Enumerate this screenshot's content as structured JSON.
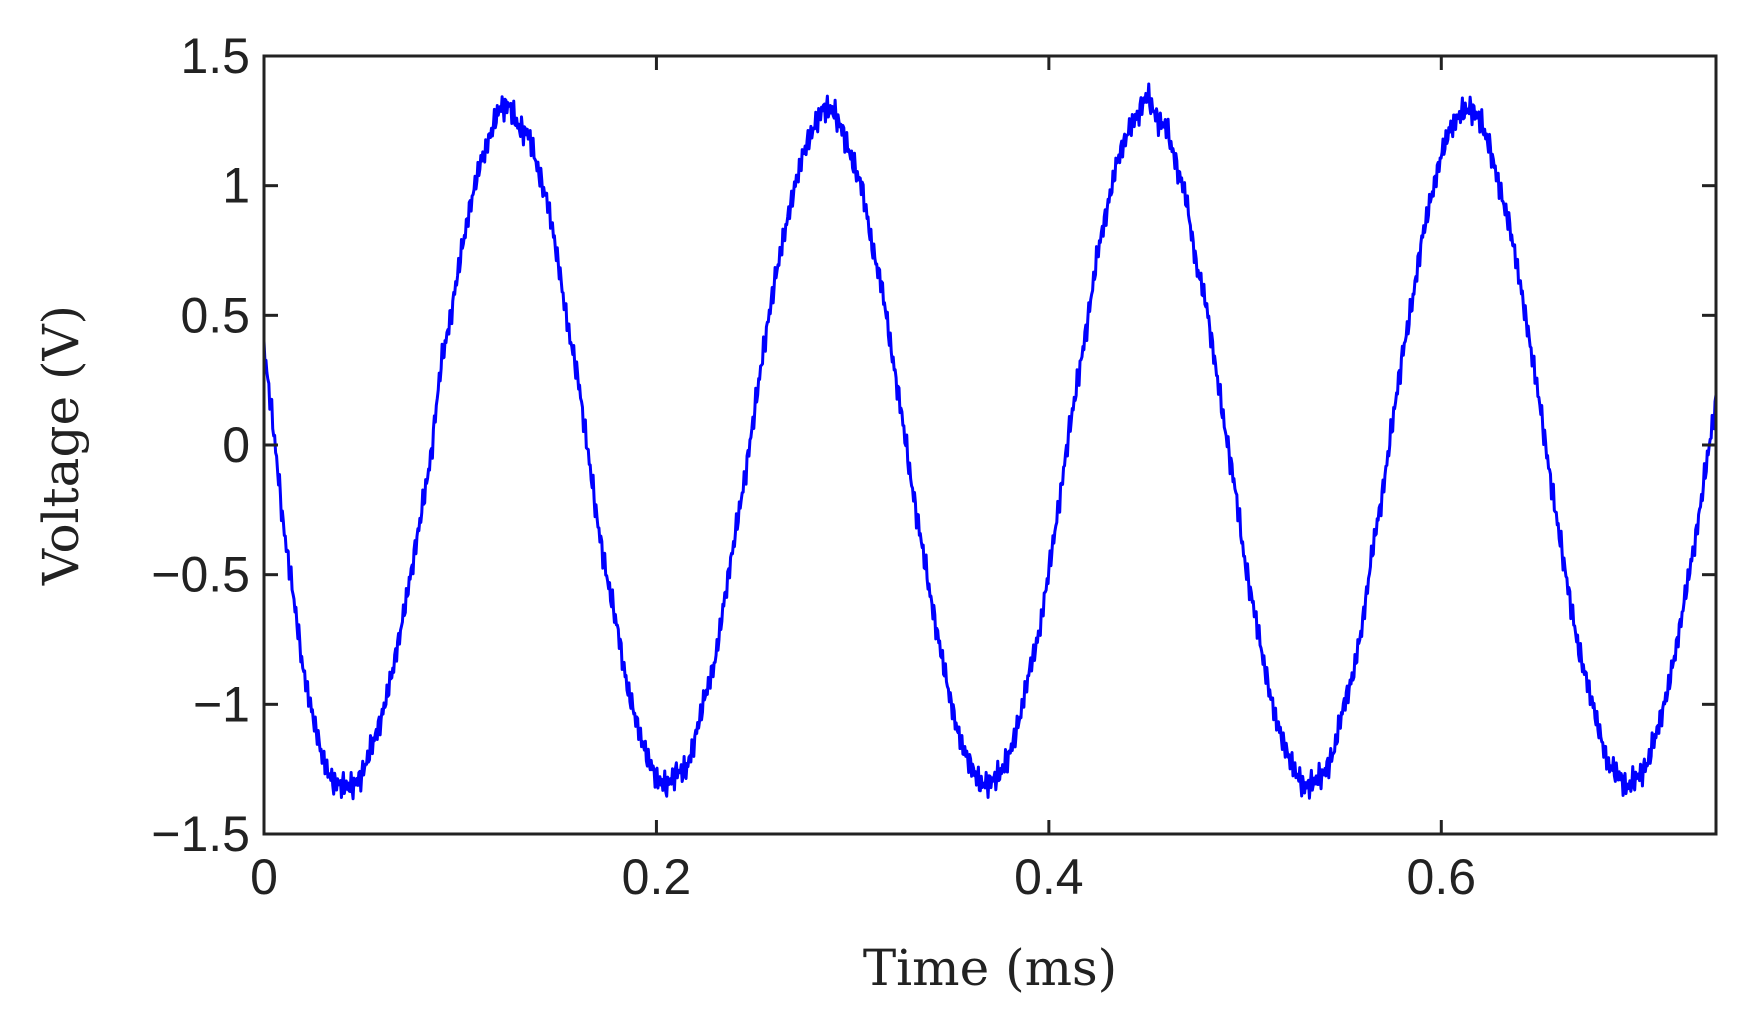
{
  "chart_data": {
    "type": "line",
    "title": "",
    "xlabel": "Time (ms)",
    "ylabel": "Voltage (V)",
    "xlim": [
      0,
      0.74
    ],
    "ylim": [
      -1.5,
      1.5
    ],
    "grid": false,
    "xticks": [
      0,
      0.2,
      0.4,
      0.6
    ],
    "xtick_labels": [
      "0",
      "0.2",
      "0.4",
      "0.6"
    ],
    "yticks": [
      1.5,
      1,
      0.5,
      0,
      -0.5,
      -1,
      -1.5
    ],
    "ytick_labels": [
      "1.5",
      "1",
      "0.5",
      "0",
      "−0.5",
      "−1",
      "−1.5"
    ],
    "series": [
      {
        "color": "#0000ff",
        "x": [
          0,
          0.005,
          0.01,
          0.015,
          0.02,
          0.025,
          0.03,
          0.035,
          0.04,
          0.045,
          0.05,
          0.055,
          0.06,
          0.065,
          0.07,
          0.075,
          0.08,
          0.085,
          0.09,
          0.095,
          0.1,
          0.105,
          0.11,
          0.115,
          0.12,
          0.125,
          0.13,
          0.135,
          0.14,
          0.145,
          0.15,
          0.155,
          0.16,
          0.165,
          0.17,
          0.175,
          0.18,
          0.185,
          0.19,
          0.195,
          0.2,
          0.205,
          0.21,
          0.215,
          0.22,
          0.225,
          0.23,
          0.235,
          0.24,
          0.245,
          0.25,
          0.255,
          0.26,
          0.265,
          0.27,
          0.275,
          0.28,
          0.285,
          0.29,
          0.295,
          0.3,
          0.305,
          0.31,
          0.315,
          0.32,
          0.325,
          0.33,
          0.335,
          0.34,
          0.345,
          0.35,
          0.355,
          0.36,
          0.365,
          0.37,
          0.375,
          0.38,
          0.385,
          0.39,
          0.395,
          0.4,
          0.405,
          0.41,
          0.415,
          0.42,
          0.425,
          0.43,
          0.435,
          0.44,
          0.445,
          0.45,
          0.455,
          0.46,
          0.465,
          0.47,
          0.475,
          0.48,
          0.485,
          0.49,
          0.495,
          0.5,
          0.505,
          0.51,
          0.515,
          0.52,
          0.525,
          0.53,
          0.535,
          0.54,
          0.545,
          0.55,
          0.555,
          0.56,
          0.565,
          0.57,
          0.575,
          0.58,
          0.585,
          0.59,
          0.595,
          0.6,
          0.605,
          0.61,
          0.615,
          0.62,
          0.625,
          0.63,
          0.635,
          0.64,
          0.645,
          0.65,
          0.655,
          0.66,
          0.665,
          0.67,
          0.675,
          0.68,
          0.685,
          0.69,
          0.695,
          0.7,
          0.705,
          0.71,
          0.715,
          0.72,
          0.725,
          0.73,
          0.735,
          0.74
        ],
        "y": [
          0.38,
          0.05,
          -0.32,
          -0.58,
          -0.87,
          -1.05,
          -1.21,
          -1.3,
          -1.31,
          -1.32,
          -1.27,
          -1.16,
          -1.05,
          -0.89,
          -0.7,
          -0.49,
          -0.27,
          -0.05,
          0.3,
          0.49,
          0.72,
          0.92,
          1.08,
          1.19,
          1.3,
          1.31,
          1.22,
          1.2,
          1.05,
          0.92,
          0.7,
          0.45,
          0.26,
          -0.02,
          -0.3,
          -0.52,
          -0.7,
          -0.93,
          -1.07,
          -1.2,
          -1.28,
          -1.32,
          -1.26,
          -1.26,
          -1.12,
          -0.96,
          -0.83,
          -0.58,
          -0.35,
          -0.13,
          0.13,
          0.39,
          0.62,
          0.81,
          0.98,
          1.13,
          1.22,
          1.3,
          1.29,
          1.21,
          1.09,
          0.99,
          0.76,
          0.61,
          0.35,
          0.12,
          -0.15,
          -0.37,
          -0.6,
          -0.8,
          -0.99,
          -1.15,
          -1.23,
          -1.31,
          -1.3,
          -1.27,
          -1.19,
          -1.06,
          -0.87,
          -0.73,
          -0.48,
          -0.24,
          0.04,
          0.26,
          0.49,
          0.75,
          0.92,
          1.1,
          1.2,
          1.27,
          1.35,
          1.26,
          1.22,
          1.08,
          0.95,
          0.7,
          0.55,
          0.3,
          0.05,
          -0.17,
          -0.46,
          -0.65,
          -0.86,
          -1.04,
          -1.16,
          -1.25,
          -1.32,
          -1.3,
          -1.27,
          -1.19,
          -1.01,
          -0.89,
          -0.68,
          -0.4,
          -0.19,
          0.08,
          0.34,
          0.54,
          0.79,
          0.96,
          1.12,
          1.23,
          1.28,
          1.3,
          1.25,
          1.14,
          0.98,
          0.84,
          0.63,
          0.4,
          0.17,
          -0.1,
          -0.34,
          -0.57,
          -0.79,
          -0.93,
          -1.09,
          -1.23,
          -1.27,
          -1.32,
          -1.28,
          -1.23,
          -1.1,
          -0.96,
          -0.77,
          -0.55,
          -0.34,
          -0.08,
          0.17
        ],
        "y_jitter_amplitude": 0.06,
        "y_jitter_frequency_khz": 300
      }
    ]
  }
}
